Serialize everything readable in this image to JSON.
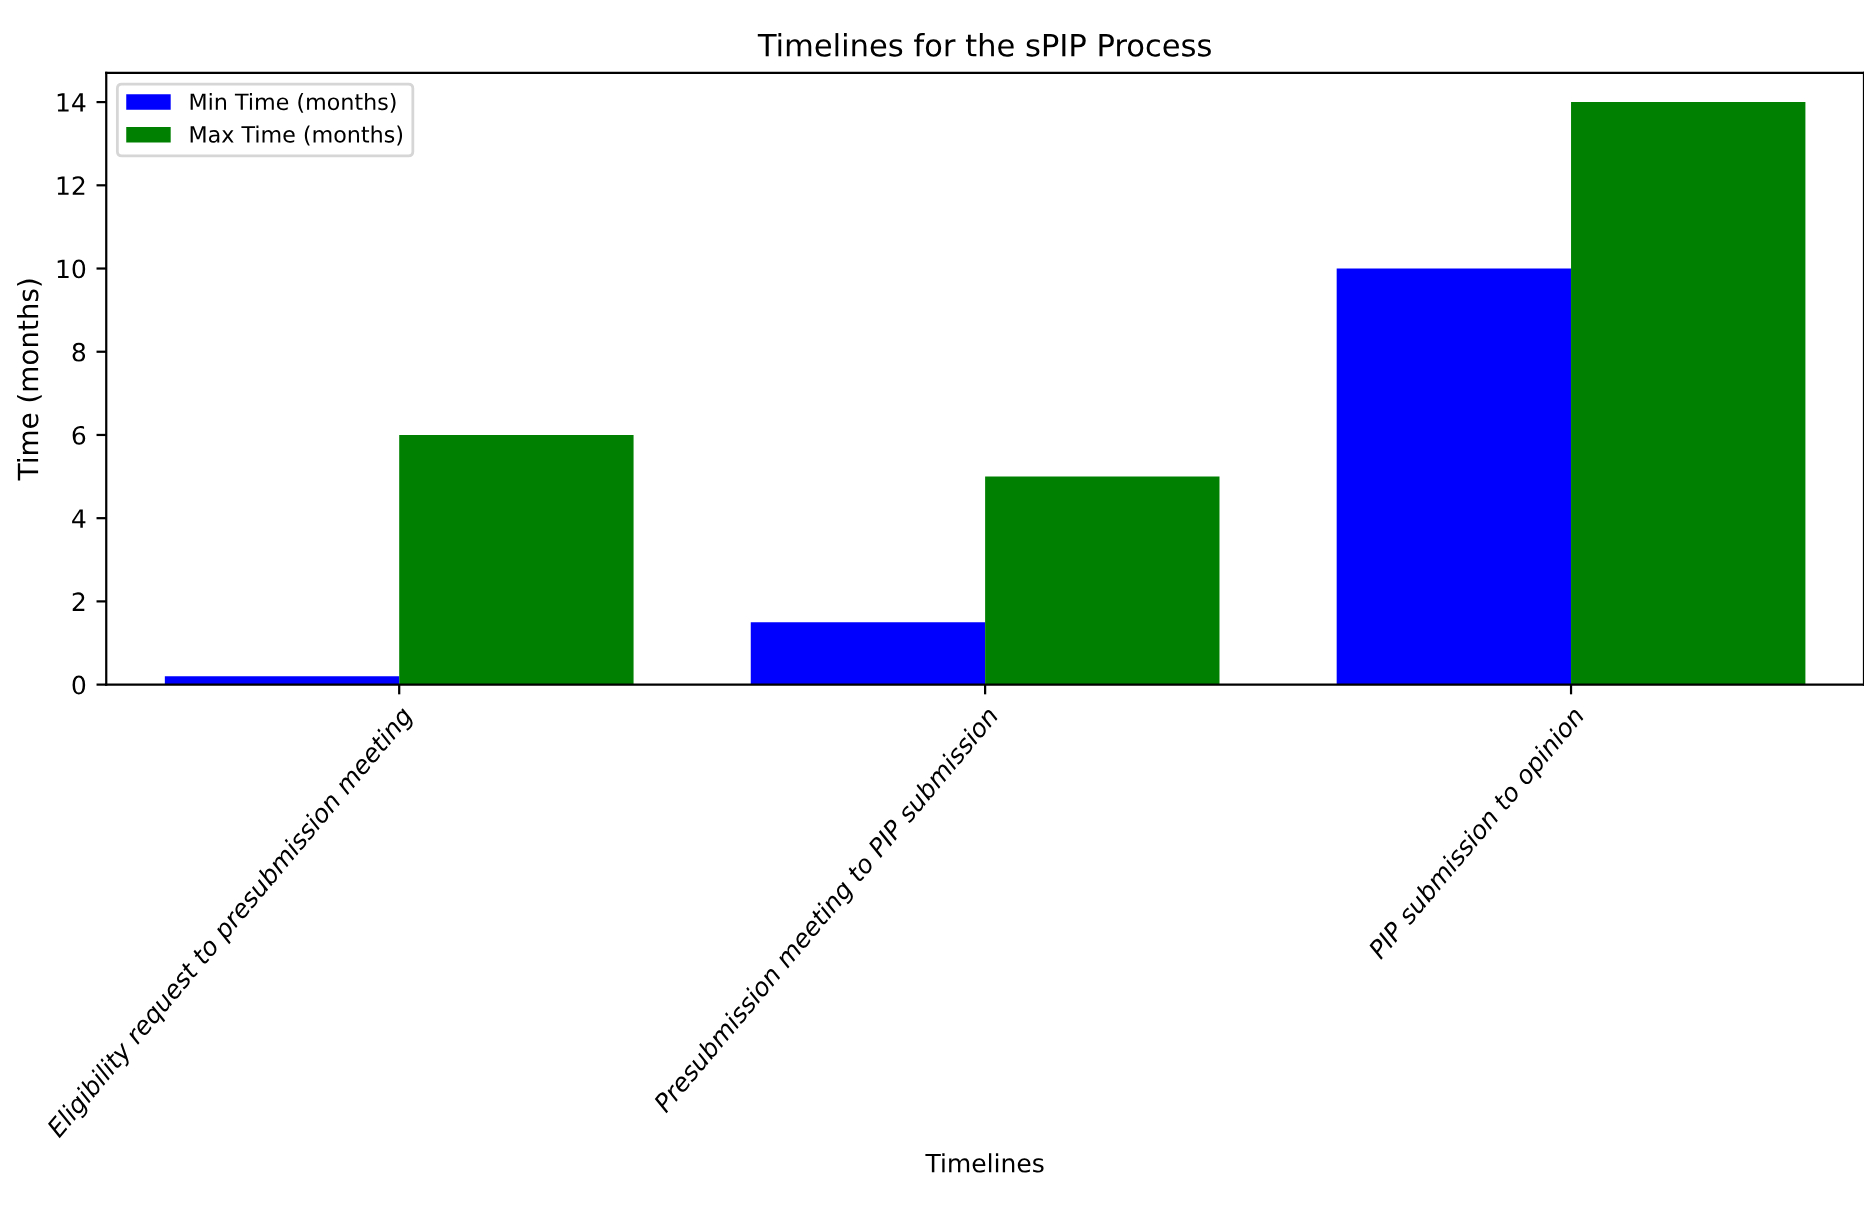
{
  "chart_data": {
    "type": "bar",
    "title": "Timelines for the sPIP Process",
    "xlabel": "Timelines",
    "ylabel": "Time (months)",
    "categories": [
      "Eligibility request to presubmission meeting",
      "Presubmission meeting to PIP submission",
      "PIP submission to opinion"
    ],
    "series": [
      {
        "name": "Min Time (months)",
        "color": "#0000ff",
        "values": [
          0.2,
          1.5,
          10
        ]
      },
      {
        "name": "Max Time (months)",
        "color": "#008000",
        "values": [
          6,
          5,
          14
        ]
      }
    ],
    "ylim": [
      0,
      14.7
    ],
    "yticks": [
      0,
      2,
      4,
      6,
      8,
      10,
      12,
      14
    ],
    "grid": false,
    "legend": "top left"
  }
}
